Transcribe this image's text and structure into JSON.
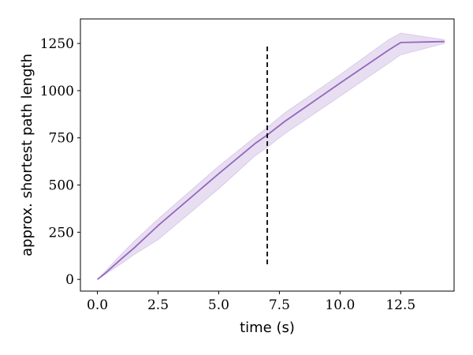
{
  "chart_data": {
    "type": "line",
    "title": "",
    "xlabel": "time (s)",
    "ylabel": "approx. shortest path length",
    "xlim": [
      -0.7,
      14.7
    ],
    "ylim": [
      -62,
      1380
    ],
    "x_ticks": [
      0,
      2.5,
      5,
      7.5,
      10,
      12.5
    ],
    "x_tick_labels": [
      "0.0",
      "2.5",
      "5.0",
      "7.5",
      "10.0",
      "12.5"
    ],
    "y_ticks": [
      0,
      250,
      500,
      750,
      1000,
      1250
    ],
    "y_tick_labels": [
      "0",
      "250",
      "500",
      "750",
      "1000",
      "1250"
    ],
    "grid": false,
    "legend": "none",
    "series": [
      {
        "color": "#9467bd",
        "band_color": "#9467bd",
        "x": [
          0,
          0.3,
          1.0,
          1.5,
          2.5,
          5.0,
          6.5,
          7.0,
          7.7,
          10.0,
          12.0,
          12.5,
          14.3
        ],
        "y": [
          0,
          30,
          110,
          165,
          285,
          560,
          720,
          765,
          835,
          1040,
          1215,
          1255,
          1260
        ],
        "lower": [
          0,
          25,
          85,
          130,
          210,
          480,
          655,
          700,
          770,
          970,
          1145,
          1190,
          1250
        ],
        "upper": [
          0,
          40,
          135,
          200,
          320,
          600,
          755,
          805,
          880,
          1085,
          1270,
          1305,
          1270
        ]
      }
    ],
    "vline": {
      "x": 7.0,
      "y_start": 80,
      "y_end": 1250,
      "color": "#000000",
      "style": "dashed"
    }
  }
}
